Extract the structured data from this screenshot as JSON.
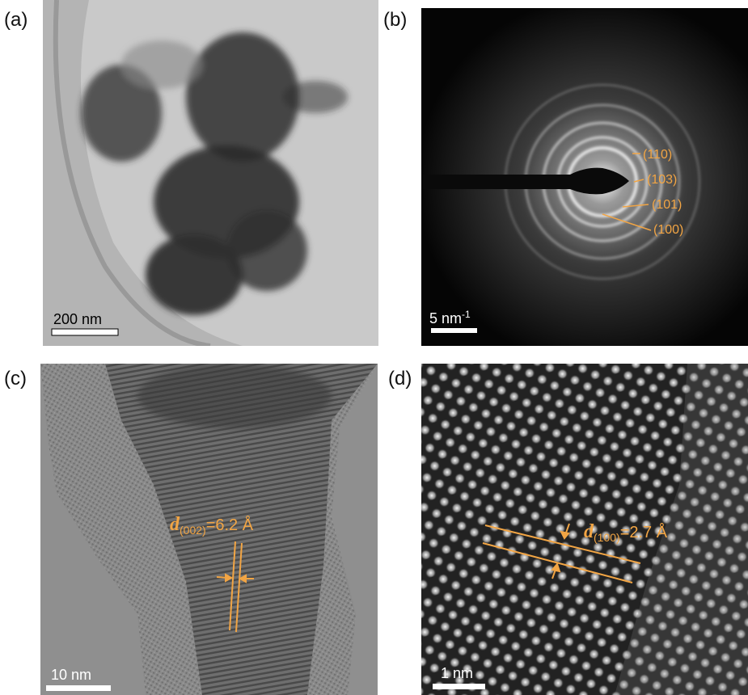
{
  "panels": [
    {
      "label": "(a)",
      "scale_bar": "200 nm"
    },
    {
      "label": "(b)",
      "scale_bar": {
        "text": "5 nm",
        "superscript": "-1"
      },
      "ring_labels": [
        "(110)",
        "(103)",
        "(101)",
        "(100)"
      ]
    },
    {
      "label": "(c)",
      "scale_bar": "10 nm",
      "annotation": {
        "symbol": "d",
        "subscript": "(002)",
        "value": "=6.2 Å"
      }
    },
    {
      "label": "(d)",
      "scale_bar": "1 nm",
      "annotation": {
        "symbol": "d",
        "subscript": "(100)",
        "value": "=2.7 Å"
      }
    }
  ]
}
